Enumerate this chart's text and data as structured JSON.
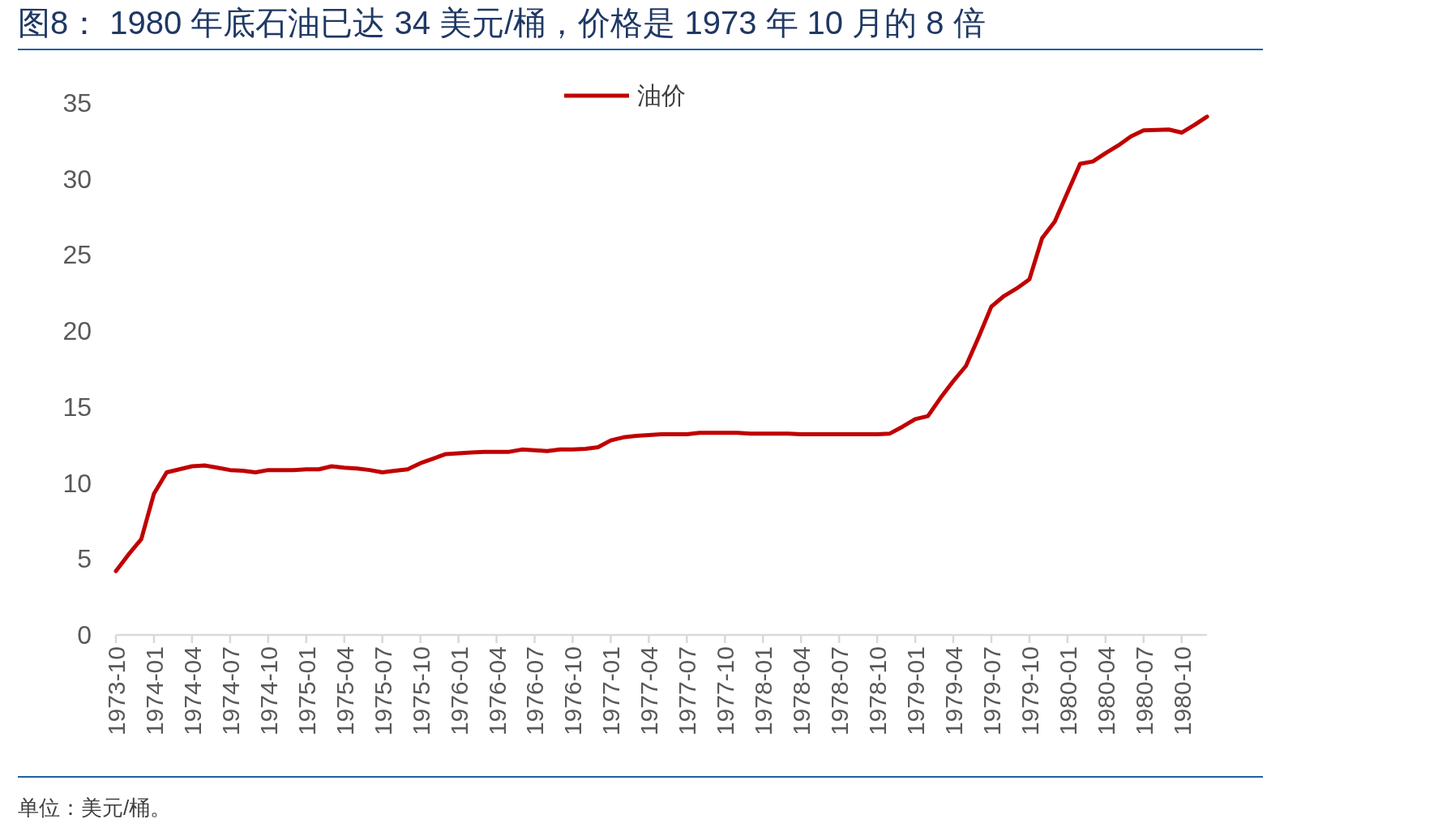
{
  "chart_data": {
    "type": "line",
    "title": "图8： 1980 年底石油已达 34 美元/桶，价格是 1973 年 10 月的 8 倍",
    "annotations": [
      "单位：美元/桶。"
    ],
    "x": [
      "1973-10",
      "1973-11",
      "1973-12",
      "1974-01",
      "1974-02",
      "1974-03",
      "1974-04",
      "1974-05",
      "1974-06",
      "1974-07",
      "1974-08",
      "1974-09",
      "1974-10",
      "1974-11",
      "1974-12",
      "1975-01",
      "1975-02",
      "1975-03",
      "1975-04",
      "1975-05",
      "1975-06",
      "1975-07",
      "1975-08",
      "1975-09",
      "1975-10",
      "1975-11",
      "1975-12",
      "1976-01",
      "1976-02",
      "1976-03",
      "1976-04",
      "1976-05",
      "1976-06",
      "1976-07",
      "1976-08",
      "1976-09",
      "1976-10",
      "1976-11",
      "1976-12",
      "1977-01",
      "1977-02",
      "1977-03",
      "1977-04",
      "1977-05",
      "1977-06",
      "1977-07",
      "1977-08",
      "1977-09",
      "1977-10",
      "1977-11",
      "1977-12",
      "1978-01",
      "1978-02",
      "1978-03",
      "1978-04",
      "1978-05",
      "1978-06",
      "1978-07",
      "1978-08",
      "1978-09",
      "1978-10",
      "1978-11",
      "1978-12",
      "1979-01",
      "1979-02",
      "1979-03",
      "1979-04",
      "1979-05",
      "1979-06",
      "1979-07",
      "1979-08",
      "1979-09",
      "1979-10",
      "1979-11",
      "1979-12",
      "1980-01",
      "1980-02",
      "1980-03",
      "1980-04",
      "1980-05",
      "1980-06",
      "1980-07",
      "1980-08",
      "1980-09",
      "1980-10",
      "1980-11",
      "1980-12"
    ],
    "series": [
      {
        "name": "油价",
        "color": "#c00000",
        "values": [
          4.2,
          5.3,
          6.3,
          9.3,
          10.7,
          10.9,
          11.1,
          11.15,
          11.0,
          10.85,
          10.8,
          10.7,
          10.85,
          10.85,
          10.85,
          10.9,
          10.9,
          11.1,
          11.0,
          10.95,
          10.85,
          10.7,
          10.8,
          10.9,
          11.3,
          11.6,
          11.9,
          11.95,
          12.0,
          12.05,
          12.05,
          12.05,
          12.2,
          12.15,
          12.1,
          12.2,
          12.2,
          12.25,
          12.35,
          12.8,
          13.0,
          13.1,
          13.15,
          13.2,
          13.2,
          13.2,
          13.3,
          13.3,
          13.3,
          13.3,
          13.25,
          13.25,
          13.25,
          13.25,
          13.2,
          13.2,
          13.2,
          13.2,
          13.2,
          13.2,
          13.2,
          13.25,
          13.7,
          14.2,
          14.4,
          15.6,
          16.7,
          17.7,
          19.6,
          21.6,
          22.3,
          22.8,
          23.4,
          26.1,
          27.2,
          29.1,
          31.0,
          31.15,
          31.7,
          32.2,
          32.8,
          33.2,
          33.22,
          33.25,
          33.05,
          33.55,
          34.1
        ]
      }
    ],
    "xlim": [
      "1973-10",
      "1980-12"
    ],
    "xticks": [
      "1973-10",
      "1974-01",
      "1974-04",
      "1974-07",
      "1974-10",
      "1975-01",
      "1975-04",
      "1975-07",
      "1975-10",
      "1976-01",
      "1976-04",
      "1976-07",
      "1976-10",
      "1977-01",
      "1977-04",
      "1977-07",
      "1977-10",
      "1978-01",
      "1978-04",
      "1978-07",
      "1978-10",
      "1979-01",
      "1979-04",
      "1979-07",
      "1979-10",
      "1980-01",
      "1980-04",
      "1980-07",
      "1980-10"
    ],
    "ylim": [
      0,
      35
    ],
    "yticks": [
      0,
      5,
      10,
      15,
      20,
      25,
      30,
      35
    ],
    "legend": "top",
    "grid": false,
    "marker": "none",
    "line_style": "solid"
  }
}
